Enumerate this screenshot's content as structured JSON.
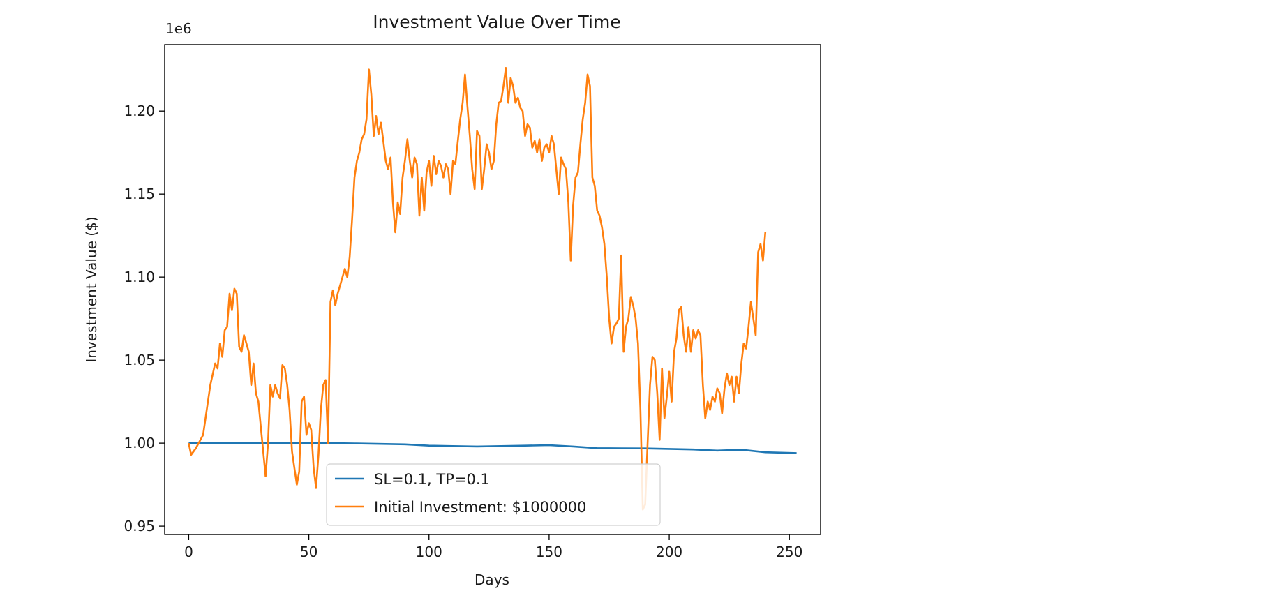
{
  "chart_data": {
    "type": "line",
    "title": "Investment Value Over Time",
    "xlabel": "Days",
    "ylabel": "Investment Value ($)",
    "y_offset_label": "1e6",
    "xlim": [
      -10,
      263
    ],
    "ylim": [
      0.945,
      1.24
    ],
    "x_ticks": [
      0,
      50,
      100,
      150,
      200,
      250
    ],
    "x_tick_labels": [
      "0",
      "50",
      "100",
      "150",
      "200",
      "250"
    ],
    "y_ticks": [
      0.95,
      1.0,
      1.05,
      1.1,
      1.15,
      1.2
    ],
    "y_tick_labels": [
      "0.95",
      "1.00",
      "1.05",
      "1.10",
      "1.15",
      "1.20"
    ],
    "grid": false,
    "legend_position": "bottom-center",
    "series": [
      {
        "name": "SL=0.1, TP=0.1",
        "color": "#1f77b4",
        "points": [
          [
            0,
            1.0
          ],
          [
            20,
            1.0
          ],
          [
            40,
            1.0
          ],
          [
            60,
            1.0
          ],
          [
            70,
            0.9998
          ],
          [
            90,
            0.9993
          ],
          [
            100,
            0.9985
          ],
          [
            120,
            0.998
          ],
          [
            140,
            0.9985
          ],
          [
            150,
            0.9988
          ],
          [
            160,
            0.998
          ],
          [
            170,
            0.997
          ],
          [
            190,
            0.9968
          ],
          [
            200,
            0.9965
          ],
          [
            210,
            0.9962
          ],
          [
            220,
            0.9955
          ],
          [
            230,
            0.996
          ],
          [
            240,
            0.9945
          ],
          [
            253,
            0.994
          ]
        ]
      },
      {
        "name": "Initial Investment: $1000000",
        "color": "#ff7f0e",
        "points": [
          [
            0,
            1.0
          ],
          [
            1,
            0.993
          ],
          [
            3,
            0.997
          ],
          [
            6,
            1.005
          ],
          [
            9,
            1.035
          ],
          [
            11,
            1.048
          ],
          [
            12,
            1.045
          ],
          [
            13,
            1.06
          ],
          [
            14,
            1.052
          ],
          [
            15,
            1.068
          ],
          [
            16,
            1.07
          ],
          [
            17,
            1.09
          ],
          [
            18,
            1.08
          ],
          [
            19,
            1.093
          ],
          [
            20,
            1.09
          ],
          [
            21,
            1.058
          ],
          [
            22,
            1.055
          ],
          [
            23,
            1.065
          ],
          [
            24,
            1.06
          ],
          [
            25,
            1.055
          ],
          [
            26,
            1.035
          ],
          [
            27,
            1.048
          ],
          [
            28,
            1.03
          ],
          [
            29,
            1.025
          ],
          [
            30,
            1.01
          ],
          [
            31,
            0.995
          ],
          [
            32,
            0.98
          ],
          [
            33,
            1.0
          ],
          [
            34,
            1.035
          ],
          [
            35,
            1.028
          ],
          [
            36,
            1.035
          ],
          [
            37,
            1.03
          ],
          [
            38,
            1.027
          ],
          [
            39,
            1.047
          ],
          [
            40,
            1.045
          ],
          [
            41,
            1.035
          ],
          [
            42,
            1.02
          ],
          [
            43,
            0.995
          ],
          [
            44,
            0.985
          ],
          [
            45,
            0.975
          ],
          [
            46,
            0.983
          ],
          [
            47,
            1.025
          ],
          [
            48,
            1.028
          ],
          [
            49,
            1.005
          ],
          [
            50,
            1.012
          ],
          [
            51,
            1.008
          ],
          [
            52,
            0.985
          ],
          [
            53,
            0.973
          ],
          [
            54,
            0.993
          ],
          [
            55,
            1.02
          ],
          [
            56,
            1.035
          ],
          [
            57,
            1.038
          ],
          [
            58,
            1.0
          ],
          [
            59,
            1.085
          ],
          [
            60,
            1.092
          ],
          [
            61,
            1.083
          ],
          [
            62,
            1.09
          ],
          [
            63,
            1.095
          ],
          [
            64,
            1.1
          ],
          [
            65,
            1.105
          ],
          [
            66,
            1.1
          ],
          [
            67,
            1.112
          ],
          [
            68,
            1.135
          ],
          [
            69,
            1.16
          ],
          [
            70,
            1.17
          ],
          [
            71,
            1.175
          ],
          [
            72,
            1.183
          ],
          [
            73,
            1.186
          ],
          [
            74,
            1.195
          ],
          [
            75,
            1.225
          ],
          [
            76,
            1.21
          ],
          [
            77,
            1.185
          ],
          [
            78,
            1.197
          ],
          [
            79,
            1.186
          ],
          [
            80,
            1.193
          ],
          [
            81,
            1.182
          ],
          [
            82,
            1.17
          ],
          [
            83,
            1.165
          ],
          [
            84,
            1.172
          ],
          [
            85,
            1.145
          ],
          [
            86,
            1.127
          ],
          [
            87,
            1.145
          ],
          [
            88,
            1.138
          ],
          [
            89,
            1.16
          ],
          [
            90,
            1.17
          ],
          [
            91,
            1.183
          ],
          [
            92,
            1.17
          ],
          [
            93,
            1.16
          ],
          [
            94,
            1.172
          ],
          [
            95,
            1.168
          ],
          [
            96,
            1.137
          ],
          [
            97,
            1.16
          ],
          [
            98,
            1.14
          ],
          [
            99,
            1.163
          ],
          [
            100,
            1.17
          ],
          [
            101,
            1.155
          ],
          [
            102,
            1.173
          ],
          [
            103,
            1.162
          ],
          [
            104,
            1.17
          ],
          [
            105,
            1.167
          ],
          [
            106,
            1.16
          ],
          [
            107,
            1.168
          ],
          [
            108,
            1.165
          ],
          [
            109,
            1.15
          ],
          [
            110,
            1.17
          ],
          [
            111,
            1.168
          ],
          [
            112,
            1.182
          ],
          [
            113,
            1.195
          ],
          [
            114,
            1.205
          ],
          [
            115,
            1.222
          ],
          [
            116,
            1.203
          ],
          [
            117,
            1.185
          ],
          [
            118,
            1.165
          ],
          [
            119,
            1.153
          ],
          [
            120,
            1.188
          ],
          [
            121,
            1.185
          ],
          [
            122,
            1.153
          ],
          [
            123,
            1.165
          ],
          [
            124,
            1.18
          ],
          [
            125,
            1.175
          ],
          [
            126,
            1.165
          ],
          [
            127,
            1.17
          ],
          [
            128,
            1.192
          ],
          [
            129,
            1.205
          ],
          [
            130,
            1.206
          ],
          [
            131,
            1.215
          ],
          [
            132,
            1.226
          ],
          [
            133,
            1.205
          ],
          [
            134,
            1.22
          ],
          [
            135,
            1.215
          ],
          [
            136,
            1.205
          ],
          [
            137,
            1.208
          ],
          [
            138,
            1.202
          ],
          [
            139,
            1.2
          ],
          [
            140,
            1.185
          ],
          [
            141,
            1.192
          ],
          [
            142,
            1.19
          ],
          [
            143,
            1.178
          ],
          [
            144,
            1.182
          ],
          [
            145,
            1.175
          ],
          [
            146,
            1.183
          ],
          [
            147,
            1.17
          ],
          [
            148,
            1.178
          ],
          [
            149,
            1.18
          ],
          [
            150,
            1.175
          ],
          [
            151,
            1.185
          ],
          [
            152,
            1.18
          ],
          [
            153,
            1.165
          ],
          [
            154,
            1.15
          ],
          [
            155,
            1.172
          ],
          [
            156,
            1.168
          ],
          [
            157,
            1.165
          ],
          [
            158,
            1.145
          ],
          [
            159,
            1.11
          ],
          [
            160,
            1.143
          ],
          [
            161,
            1.16
          ],
          [
            162,
            1.163
          ],
          [
            163,
            1.18
          ],
          [
            164,
            1.195
          ],
          [
            165,
            1.205
          ],
          [
            166,
            1.222
          ],
          [
            167,
            1.215
          ],
          [
            168,
            1.16
          ],
          [
            169,
            1.155
          ],
          [
            170,
            1.14
          ],
          [
            171,
            1.137
          ],
          [
            172,
            1.13
          ],
          [
            173,
            1.12
          ],
          [
            174,
            1.1
          ],
          [
            175,
            1.075
          ],
          [
            176,
            1.06
          ],
          [
            177,
            1.07
          ],
          [
            178,
            1.072
          ],
          [
            179,
            1.075
          ],
          [
            180,
            1.113
          ],
          [
            181,
            1.055
          ],
          [
            182,
            1.07
          ],
          [
            183,
            1.075
          ],
          [
            184,
            1.088
          ],
          [
            185,
            1.083
          ],
          [
            186,
            1.075
          ],
          [
            187,
            1.06
          ],
          [
            188,
            1.02
          ],
          [
            189,
            0.96
          ],
          [
            190,
            0.963
          ],
          [
            191,
            1.0
          ],
          [
            192,
            1.035
          ],
          [
            193,
            1.052
          ],
          [
            194,
            1.05
          ],
          [
            195,
            1.03
          ],
          [
            196,
            1.002
          ],
          [
            197,
            1.045
          ],
          [
            198,
            1.015
          ],
          [
            199,
            1.028
          ],
          [
            200,
            1.043
          ],
          [
            201,
            1.025
          ],
          [
            202,
            1.055
          ],
          [
            203,
            1.063
          ],
          [
            204,
            1.08
          ],
          [
            205,
            1.082
          ],
          [
            206,
            1.065
          ],
          [
            207,
            1.055
          ],
          [
            208,
            1.07
          ],
          [
            209,
            1.055
          ],
          [
            210,
            1.068
          ],
          [
            211,
            1.063
          ],
          [
            212,
            1.068
          ],
          [
            213,
            1.065
          ],
          [
            214,
            1.035
          ],
          [
            215,
            1.015
          ],
          [
            216,
            1.025
          ],
          [
            217,
            1.02
          ],
          [
            218,
            1.028
          ],
          [
            219,
            1.025
          ],
          [
            220,
            1.033
          ],
          [
            221,
            1.03
          ],
          [
            222,
            1.018
          ],
          [
            223,
            1.033
          ],
          [
            224,
            1.042
          ],
          [
            225,
            1.035
          ],
          [
            226,
            1.04
          ],
          [
            227,
            1.025
          ],
          [
            228,
            1.04
          ],
          [
            229,
            1.03
          ],
          [
            230,
            1.048
          ],
          [
            231,
            1.06
          ],
          [
            232,
            1.057
          ],
          [
            233,
            1.07
          ],
          [
            234,
            1.085
          ],
          [
            235,
            1.075
          ],
          [
            236,
            1.065
          ],
          [
            237,
            1.115
          ],
          [
            238,
            1.12
          ],
          [
            239,
            1.11
          ],
          [
            240,
            1.127
          ]
        ]
      }
    ]
  }
}
